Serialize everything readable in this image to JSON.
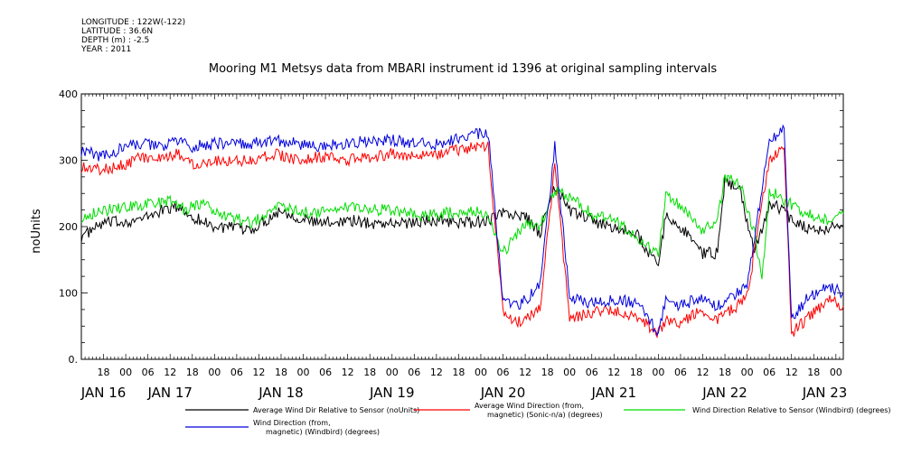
{
  "meta": {
    "longitude": "LONGITUDE : 122W(-122)",
    "latitude": "LATITUDE : 36.6N",
    "depth": "DEPTH (m) : -2.5",
    "year": "YEAR : 2011"
  },
  "chart_data": {
    "type": "line",
    "title": "Mooring M1 Metsys data from MBARI instrument id 1396 at original sampling intervals",
    "xlabel": "",
    "ylabel": "noUnits",
    "ylim": [
      0,
      400
    ],
    "yticks": [
      "0.",
      "100",
      "200",
      "300",
      "400"
    ],
    "x_range_hours": [
      -6,
      200
    ],
    "hour_ticks": [
      {
        "h": 0,
        "label": "18"
      },
      {
        "h": 6,
        "label": "00"
      },
      {
        "h": 12,
        "label": "06"
      },
      {
        "h": 18,
        "label": "12"
      },
      {
        "h": 24,
        "label": "18"
      },
      {
        "h": 30,
        "label": "00"
      },
      {
        "h": 36,
        "label": "06"
      },
      {
        "h": 42,
        "label": "12"
      },
      {
        "h": 48,
        "label": "18"
      },
      {
        "h": 54,
        "label": "00"
      },
      {
        "h": 60,
        "label": "06"
      },
      {
        "h": 66,
        "label": "12"
      },
      {
        "h": 72,
        "label": "18"
      },
      {
        "h": 78,
        "label": "00"
      },
      {
        "h": 84,
        "label": "06"
      },
      {
        "h": 90,
        "label": "12"
      },
      {
        "h": 96,
        "label": "18"
      },
      {
        "h": 102,
        "label": "00"
      },
      {
        "h": 108,
        "label": "06"
      },
      {
        "h": 114,
        "label": "12"
      },
      {
        "h": 120,
        "label": "18"
      },
      {
        "h": 126,
        "label": "00"
      },
      {
        "h": 132,
        "label": "06"
      },
      {
        "h": 138,
        "label": "12"
      },
      {
        "h": 144,
        "label": "18"
      },
      {
        "h": 150,
        "label": "00"
      },
      {
        "h": 156,
        "label": "06"
      },
      {
        "h": 162,
        "label": "12"
      },
      {
        "h": 168,
        "label": "18"
      },
      {
        "h": 174,
        "label": "00"
      },
      {
        "h": 180,
        "label": "06"
      },
      {
        "h": 186,
        "label": "12"
      },
      {
        "h": 192,
        "label": "18"
      },
      {
        "h": 198,
        "label": "00"
      }
    ],
    "date_labels": [
      {
        "h": 0,
        "label": "JAN 16"
      },
      {
        "h": 18,
        "label": "JAN 17"
      },
      {
        "h": 48,
        "label": "JAN 18"
      },
      {
        "h": 78,
        "label": "JAN 19"
      },
      {
        "h": 108,
        "label": "JAN 20"
      },
      {
        "h": 138,
        "label": "JAN 21"
      },
      {
        "h": 168,
        "label": "JAN 22"
      },
      {
        "h": 195,
        "label": "JAN 23"
      }
    ],
    "series": [
      {
        "name": "Average Wind Dir Relative to Sensor (noUnits)",
        "color": "#000000",
        "x": [
          -6,
          0,
          10,
          16,
          20,
          24,
          30,
          40,
          48,
          52,
          58,
          66,
          72,
          80,
          90,
          100,
          104,
          108,
          114,
          118,
          122,
          126,
          128,
          136,
          144,
          150,
          152,
          156,
          162,
          166,
          168,
          172,
          176,
          180,
          184,
          186,
          192,
          200
        ],
        "y": [
          185,
          205,
          210,
          225,
          230,
          215,
          200,
          195,
          225,
          215,
          205,
          210,
          205,
          205,
          210,
          205,
          210,
          220,
          215,
          190,
          260,
          225,
          220,
          200,
          190,
          140,
          215,
          200,
          160,
          160,
          270,
          255,
          160,
          235,
          225,
          210,
          195,
          200
        ]
      },
      {
        "name": "Average Wind Direction (from, magnetic) (Sonic-n/a) (degrees)",
        "color": "#ff0000",
        "x": [
          -6,
          0,
          6,
          10,
          16,
          20,
          24,
          30,
          40,
          46,
          52,
          58,
          66,
          72,
          78,
          84,
          90,
          100,
          104,
          108,
          112,
          118,
          122,
          126,
          132,
          138,
          144,
          150,
          152,
          156,
          162,
          166,
          170,
          174,
          180,
          184,
          186,
          190,
          196,
          200
        ],
        "y": [
          290,
          285,
          295,
          305,
          300,
          310,
          295,
          300,
          300,
          310,
          300,
          305,
          300,
          305,
          310,
          305,
          310,
          320,
          320,
          70,
          55,
          75,
          290,
          60,
          70,
          75,
          65,
          40,
          60,
          55,
          75,
          60,
          75,
          95,
          300,
          320,
          40,
          60,
          90,
          80
        ]
      },
      {
        "name": "Wind Direction Relative to Sensor (Windbird) (degrees)",
        "color": "#00dd00",
        "x": [
          -6,
          0,
          8,
          14,
          18,
          22,
          26,
          34,
          40,
          46,
          52,
          58,
          66,
          72,
          78,
          86,
          92,
          100,
          104,
          108,
          114,
          118,
          122,
          126,
          132,
          138,
          144,
          150,
          152,
          156,
          162,
          166,
          168,
          172,
          176,
          178,
          180,
          184,
          190,
          196,
          200
        ],
        "y": [
          215,
          225,
          230,
          235,
          240,
          225,
          235,
          215,
          205,
          230,
          225,
          220,
          230,
          225,
          225,
          215,
          220,
          225,
          220,
          160,
          205,
          200,
          255,
          245,
          220,
          210,
          185,
          160,
          250,
          230,
          195,
          210,
          275,
          265,
          190,
          120,
          255,
          240,
          220,
          210,
          220
        ]
      },
      {
        "name": "Wind Direction (from, magnetic) (Windbird) (degrees)",
        "color": "#0000dd",
        "x": [
          -6,
          0,
          6,
          10,
          16,
          20,
          24,
          30,
          40,
          46,
          52,
          58,
          66,
          72,
          78,
          84,
          90,
          100,
          104,
          108,
          112,
          118,
          122,
          126,
          132,
          138,
          144,
          150,
          152,
          156,
          162,
          166,
          170,
          174,
          180,
          184,
          186,
          190,
          196,
          200
        ],
        "y": [
          315,
          305,
          320,
          325,
          320,
          330,
          320,
          325,
          325,
          330,
          325,
          320,
          325,
          330,
          330,
          325,
          325,
          340,
          340,
          90,
          80,
          110,
          320,
          95,
          85,
          90,
          85,
          40,
          90,
          80,
          95,
          80,
          95,
          110,
          330,
          345,
          60,
          90,
          110,
          100
        ]
      }
    ],
    "legend": [
      {
        "series": 0,
        "line1": "Average Wind Dir Relative to Sensor (noUnits)",
        "line2": ""
      },
      {
        "series": 1,
        "line1": "Average Wind Direction (from,",
        "line2": "magnetic) (Sonic-n/a) (degrees)"
      },
      {
        "series": 2,
        "line1": "Wind Direction Relative to Sensor (Windbird) (degrees)",
        "line2": ""
      },
      {
        "series": 3,
        "line1": "Wind Direction (from,",
        "line2": "magnetic) (Windbird) (degrees)"
      }
    ],
    "legend_position": "bottom"
  }
}
